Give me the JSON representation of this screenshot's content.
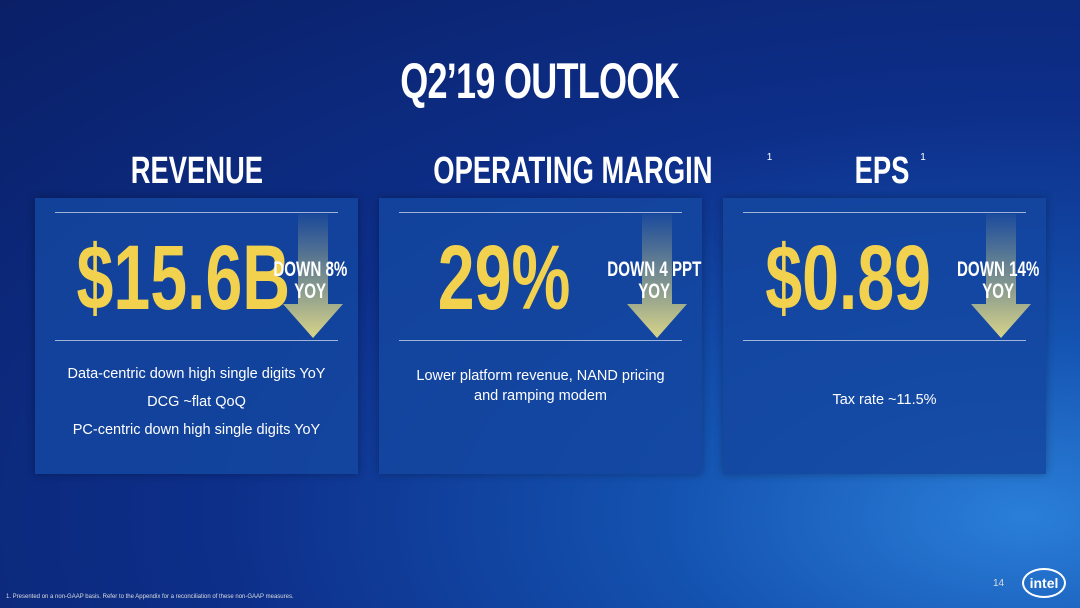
{
  "header": {
    "title": "Q2’19 OUTLOOK"
  },
  "cards": [
    {
      "heading": "REVENUE",
      "value": "$15.6B",
      "change": "DOWN 8%",
      "period": "YOY",
      "notes": [
        "Data-centric down high single digits YoY",
        "DCG ~flat QoQ",
        "PC-centric down high single digits YoY"
      ]
    },
    {
      "heading": "OPERATING MARGIN",
      "footnote_mark": "1",
      "value": "29%",
      "change": "DOWN 4 PPT",
      "period": "YOY",
      "notes": [
        "Lower platform revenue, NAND pricing and ramping modem"
      ]
    },
    {
      "heading": "EPS",
      "footnote_mark": "1",
      "value": "$0.89",
      "change": "DOWN 14%",
      "period": "YOY",
      "notes": [
        "Tax rate ~11.5%"
      ]
    }
  ],
  "footer": {
    "footnote": "1. Presented on a non-GAAP basis. Refer to the Appendix for a reconciliation of these non-GAAP measures.",
    "page": "14",
    "logo": "intel"
  }
}
